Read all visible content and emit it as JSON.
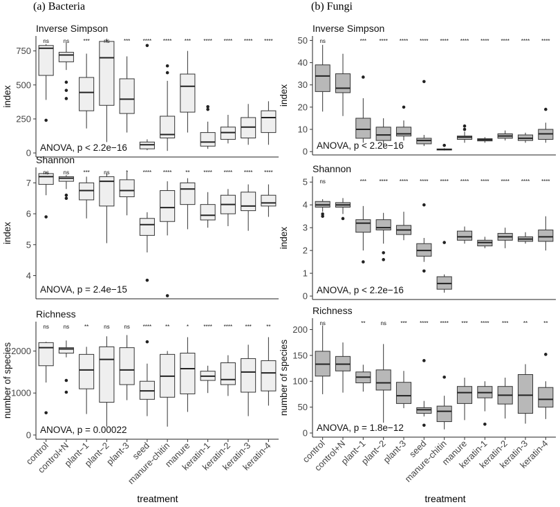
{
  "figure": {
    "x_axis_title": "treatment",
    "treatments": [
      "control",
      "control+N",
      "plant−1",
      "plant−2",
      "plant-3",
      "seed",
      "manure-chitin",
      "manure",
      "keratin-1",
      "keratin-2",
      "keratin-3",
      "keratin-4"
    ],
    "colors": {
      "bacteria_fill": "#efefef",
      "fungi_fill": "#b8b8b8",
      "stroke": "#333333",
      "median": "#222222"
    }
  },
  "chart_data": [
    {
      "type": "box",
      "column": "bacteria",
      "heading": "(a) Bacteria",
      "title": "Inverse Simpson",
      "ylabel": "index",
      "ylim": [
        -30,
        860
      ],
      "yticks": [
        0,
        250,
        500,
        750
      ],
      "annotation": "ANOVA, p < 2.2e−16",
      "sig": [
        "ns",
        "ns",
        "***",
        "ns",
        "***",
        "****",
        "****",
        "***",
        "****",
        "****",
        "****",
        "****"
      ],
      "boxes": [
        {
          "wlo": 390,
          "q1": 570,
          "med": 770,
          "q3": 790,
          "whi": 800,
          "out": [
            240
          ]
        },
        {
          "wlo": 610,
          "q1": 670,
          "med": 720,
          "q3": 740,
          "whi": 810,
          "out": [
            400,
            460,
            520
          ]
        },
        {
          "wlo": 180,
          "q1": 310,
          "med": 445,
          "q3": 555,
          "whi": 730,
          "out": []
        },
        {
          "wlo": 80,
          "q1": 350,
          "med": 700,
          "q3": 820,
          "whi": 840,
          "out": []
        },
        {
          "wlo": 150,
          "q1": 290,
          "med": 395,
          "q3": 545,
          "whi": 710,
          "out": []
        },
        {
          "wlo": 20,
          "q1": 30,
          "med": 60,
          "q3": 80,
          "whi": 100,
          "out": [
            790
          ]
        },
        {
          "wlo": 15,
          "q1": 110,
          "med": 135,
          "q3": 270,
          "whi": 530,
          "out": [
            590,
            640
          ]
        },
        {
          "wlo": 150,
          "q1": 300,
          "med": 490,
          "q3": 580,
          "whi": 750,
          "out": []
        },
        {
          "wlo": 30,
          "q1": 50,
          "med": 80,
          "q3": 150,
          "whi": 230,
          "out": [
            320,
            340
          ]
        },
        {
          "wlo": 70,
          "q1": 100,
          "med": 150,
          "q3": 190,
          "whi": 280,
          "out": []
        },
        {
          "wlo": 60,
          "q1": 110,
          "med": 190,
          "q3": 260,
          "whi": 360,
          "out": []
        },
        {
          "wlo": 60,
          "q1": 150,
          "med": 260,
          "q3": 310,
          "whi": 380,
          "out": []
        }
      ]
    },
    {
      "type": "box",
      "column": "bacteria",
      "title": "Shannon",
      "ylabel": "index",
      "ylim": [
        3.25,
        7.5
      ],
      "yticks": [
        4,
        5,
        6,
        7
      ],
      "annotation": "ANOVA, p = 2.4e−15",
      "sig": [
        "ns",
        "ns",
        "***",
        "ns",
        "*",
        "****",
        "****",
        "**",
        "****",
        "****",
        "****",
        "****"
      ],
      "boxes": [
        {
          "wlo": 6.6,
          "q1": 6.95,
          "med": 7.2,
          "q3": 7.3,
          "whi": 7.35,
          "out": [
            5.9
          ]
        },
        {
          "wlo": 6.8,
          "q1": 7.05,
          "med": 7.15,
          "q3": 7.2,
          "whi": 7.25,
          "out": [
            6.5,
            6.6
          ]
        },
        {
          "wlo": 5.85,
          "q1": 6.45,
          "med": 6.75,
          "q3": 7.0,
          "whi": 7.2,
          "out": []
        },
        {
          "wlo": 5.05,
          "q1": 6.25,
          "med": 7.05,
          "q3": 7.2,
          "whi": 7.3,
          "out": []
        },
        {
          "wlo": 5.95,
          "q1": 6.55,
          "med": 6.75,
          "q3": 7.1,
          "whi": 7.35,
          "out": []
        },
        {
          "wlo": 4.75,
          "q1": 5.3,
          "med": 5.65,
          "q3": 5.85,
          "whi": 6.05,
          "out": [
            3.85
          ]
        },
        {
          "wlo": 5.3,
          "q1": 5.75,
          "med": 6.2,
          "q3": 6.75,
          "whi": 7.05,
          "out": [
            3.35
          ]
        },
        {
          "wlo": 5.5,
          "q1": 6.3,
          "med": 6.8,
          "q3": 7.0,
          "whi": 7.15,
          "out": []
        },
        {
          "wlo": 5.55,
          "q1": 5.8,
          "med": 5.95,
          "q3": 6.3,
          "whi": 6.7,
          "out": []
        },
        {
          "wlo": 5.6,
          "q1": 6.0,
          "med": 6.3,
          "q3": 6.6,
          "whi": 6.8,
          "out": []
        },
        {
          "wlo": 5.45,
          "q1": 6.1,
          "med": 6.25,
          "q3": 6.7,
          "whi": 6.95,
          "out": []
        },
        {
          "wlo": 5.9,
          "q1": 6.25,
          "med": 6.35,
          "q3": 6.6,
          "whi": 6.95,
          "out": []
        }
      ]
    },
    {
      "type": "box",
      "column": "bacteria",
      "title": "Richness",
      "ylabel": "number of species",
      "ylim": [
        -100,
        2700
      ],
      "yticks": [
        0,
        1000,
        2000
      ],
      "annotation": "ANOVA, p = 0.00022",
      "sig": [
        "ns",
        "ns",
        "**",
        "ns",
        "ns",
        "****",
        "**",
        "*",
        "****",
        "****",
        "***",
        "**"
      ],
      "boxes": [
        {
          "wlo": 1250,
          "q1": 1650,
          "med": 2080,
          "q3": 2200,
          "whi": 2220,
          "out": [
            530
          ]
        },
        {
          "wlo": 1850,
          "q1": 1950,
          "med": 2050,
          "q3": 2080,
          "whi": 2250,
          "out": [
            1300,
            1020
          ]
        },
        {
          "wlo": 500,
          "q1": 1100,
          "med": 1550,
          "q3": 1920,
          "whi": 2100,
          "out": []
        },
        {
          "wlo": 200,
          "q1": 780,
          "med": 1800,
          "q3": 2100,
          "whi": 2350,
          "out": []
        },
        {
          "wlo": 830,
          "q1": 1200,
          "med": 1550,
          "q3": 2080,
          "whi": 2380,
          "out": []
        },
        {
          "wlo": 450,
          "q1": 850,
          "med": 1050,
          "q3": 1280,
          "whi": 1700,
          "out": [
            2220
          ]
        },
        {
          "wlo": 200,
          "q1": 900,
          "med": 1400,
          "q3": 1920,
          "whi": 2000,
          "out": []
        },
        {
          "wlo": 550,
          "q1": 980,
          "med": 1580,
          "q3": 1950,
          "whi": 2330,
          "out": []
        },
        {
          "wlo": 1000,
          "q1": 1300,
          "med": 1400,
          "q3": 1520,
          "whi": 1650,
          "out": []
        },
        {
          "wlo": 930,
          "q1": 1200,
          "med": 1320,
          "q3": 1720,
          "whi": 1900,
          "out": []
        },
        {
          "wlo": 450,
          "q1": 1020,
          "med": 1500,
          "q3": 1820,
          "whi": 2150,
          "out": []
        },
        {
          "wlo": 700,
          "q1": 1050,
          "med": 1480,
          "q3": 1770,
          "whi": 2330,
          "out": []
        }
      ]
    },
    {
      "type": "box",
      "column": "fungi",
      "heading": "(b) Fungi",
      "title": "Inverse Simpson",
      "ylabel": "index",
      "ylim": [
        -1.5,
        52
      ],
      "yticks": [
        0,
        10,
        20,
        30,
        40,
        50
      ],
      "annotation": "ANOVA, p < 2.2e−16",
      "sig": [
        "ns",
        "",
        "***",
        "****",
        "****",
        "****",
        "****",
        "****",
        "****",
        "****",
        "****",
        "****"
      ],
      "boxes": [
        {
          "wlo": 18,
          "q1": 27,
          "med": 34,
          "q3": 39,
          "whi": 48,
          "out": []
        },
        {
          "wlo": 16,
          "q1": 26.5,
          "med": 28.5,
          "q3": 35,
          "whi": 44,
          "out": []
        },
        {
          "wlo": 4,
          "q1": 6,
          "med": 10,
          "q3": 15,
          "whi": 24,
          "out": [
            33.5
          ]
        },
        {
          "wlo": 3,
          "q1": 5,
          "med": 7.5,
          "q3": 11,
          "whi": 15,
          "out": []
        },
        {
          "wlo": 5,
          "q1": 7,
          "med": 8,
          "q3": 11,
          "whi": 14,
          "out": [
            20
          ]
        },
        {
          "wlo": 2.5,
          "q1": 3.5,
          "med": 5,
          "q3": 6,
          "whi": 7.5,
          "out": [
            31.5
          ]
        },
        {
          "wlo": 0.5,
          "q1": 0.7,
          "med": 1,
          "q3": 1.2,
          "whi": 1.5,
          "out": [
            2.8
          ]
        },
        {
          "wlo": 4,
          "q1": 5.5,
          "med": 6.5,
          "q3": 7,
          "whi": 9,
          "out": [
            10,
            11.5
          ]
        },
        {
          "wlo": 4,
          "q1": 4.8,
          "med": 5.3,
          "q3": 5.8,
          "whi": 6.5,
          "out": []
        },
        {
          "wlo": 5,
          "q1": 6,
          "med": 7,
          "q3": 8,
          "whi": 9.5,
          "out": []
        },
        {
          "wlo": 4,
          "q1": 5,
          "med": 6,
          "q3": 7.5,
          "whi": 8.5,
          "out": []
        },
        {
          "wlo": 4,
          "q1": 5.5,
          "med": 8,
          "q3": 10,
          "whi": 13,
          "out": [
            19
          ]
        }
      ]
    },
    {
      "type": "box",
      "column": "fungi",
      "title": "Shannon",
      "ylabel": "index",
      "ylim": [
        -0.15,
        5.25
      ],
      "yticks": [
        0,
        1,
        2,
        3,
        4,
        5
      ],
      "annotation": "ANOVA, p < 2.2e−16",
      "sig": [
        "ns",
        "",
        "***",
        "****",
        "****",
        "****",
        "****",
        "****",
        "****",
        "****",
        "****",
        "****"
      ],
      "boxes": [
        {
          "wlo": 3.7,
          "q1": 3.9,
          "med": 4.0,
          "q3": 4.15,
          "whi": 4.25,
          "out": [
            3.5,
            3.6
          ]
        },
        {
          "wlo": 3.6,
          "q1": 3.9,
          "med": 4.0,
          "q3": 4.1,
          "whi": 4.3,
          "out": [
            3.4
          ]
        },
        {
          "wlo": 2.0,
          "q1": 2.8,
          "med": 3.2,
          "q3": 3.35,
          "whi": 3.95,
          "out": [
            1.5
          ]
        },
        {
          "wlo": 2.3,
          "q1": 2.9,
          "med": 3.0,
          "q3": 3.35,
          "whi": 3.65,
          "out": [
            1.6,
            1.9
          ]
        },
        {
          "wlo": 2.45,
          "q1": 2.7,
          "med": 2.9,
          "q3": 3.1,
          "whi": 3.7,
          "out": []
        },
        {
          "wlo": 1.5,
          "q1": 1.75,
          "med": 2.0,
          "q3": 2.3,
          "whi": 2.55,
          "out": [
            1.1,
            4.0
          ]
        },
        {
          "wlo": 0.15,
          "q1": 0.3,
          "med": 0.55,
          "q3": 0.85,
          "whi": 0.95,
          "out": [
            2.35
          ]
        },
        {
          "wlo": 2.3,
          "q1": 2.45,
          "med": 2.6,
          "q3": 2.85,
          "whi": 3.05,
          "out": []
        },
        {
          "wlo": 2.1,
          "q1": 2.2,
          "med": 2.35,
          "q3": 2.45,
          "whi": 2.6,
          "out": []
        },
        {
          "wlo": 2.1,
          "q1": 2.45,
          "med": 2.6,
          "q3": 2.75,
          "whi": 3.0,
          "out": []
        },
        {
          "wlo": 2.3,
          "q1": 2.4,
          "med": 2.5,
          "q3": 2.6,
          "whi": 2.8,
          "out": []
        },
        {
          "wlo": 2.0,
          "q1": 2.4,
          "med": 2.6,
          "q3": 2.9,
          "whi": 3.5,
          "out": []
        }
      ]
    },
    {
      "type": "box",
      "column": "fungi",
      "title": "Richness",
      "ylabel": "number of species",
      "ylim": [
        -8,
        222
      ],
      "yticks": [
        0,
        50,
        100,
        150,
        200
      ],
      "annotation": "ANOVA, p = 1.8e−12",
      "sig": [
        "ns",
        "",
        "**",
        "ns",
        "***",
        "****",
        "****",
        "***",
        "****",
        "***",
        "**",
        "**"
      ],
      "boxes": [
        {
          "wlo": 75,
          "q1": 110,
          "med": 133,
          "q3": 158,
          "whi": 208,
          "out": []
        },
        {
          "wlo": 78,
          "q1": 120,
          "med": 133,
          "q3": 148,
          "whi": 175,
          "out": []
        },
        {
          "wlo": 80,
          "q1": 97,
          "med": 108,
          "q3": 118,
          "whi": 132,
          "out": []
        },
        {
          "wlo": 20,
          "q1": 83,
          "med": 97,
          "q3": 122,
          "whi": 172,
          "out": []
        },
        {
          "wlo": 48,
          "q1": 57,
          "med": 72,
          "q3": 98,
          "whi": 120,
          "out": []
        },
        {
          "wlo": 32,
          "q1": 38,
          "med": 45,
          "q3": 49,
          "whi": 62,
          "out": [
            15,
            140
          ]
        },
        {
          "wlo": 7,
          "q1": 22,
          "med": 42,
          "q3": 52,
          "whi": 72,
          "out": [
            108
          ]
        },
        {
          "wlo": 25,
          "q1": 57,
          "med": 78,
          "q3": 90,
          "whi": 107,
          "out": []
        },
        {
          "wlo": 42,
          "q1": 68,
          "med": 78,
          "q3": 90,
          "whi": 100,
          "out": [
            17
          ]
        },
        {
          "wlo": 28,
          "q1": 56,
          "med": 73,
          "q3": 90,
          "whi": 107,
          "out": []
        },
        {
          "wlo": 18,
          "q1": 38,
          "med": 73,
          "q3": 113,
          "whi": 133,
          "out": []
        },
        {
          "wlo": 27,
          "q1": 50,
          "med": 65,
          "q3": 88,
          "whi": 100,
          "out": [
            152
          ]
        }
      ]
    }
  ]
}
